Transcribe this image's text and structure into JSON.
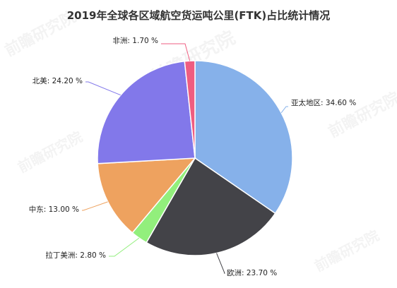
{
  "chart_data": {
    "type": "pie",
    "title": "2019年全球各区域航空货运吨公里(FTK)占比统计情况",
    "unit": "%",
    "slices": [
      {
        "name": "亚太地区",
        "value": 34.6,
        "label": "亚太地区: 34.60 %",
        "color": "#86b1ea"
      },
      {
        "name": "欧洲",
        "value": 23.7,
        "label": "欧洲: 23.70 %",
        "color": "#434348"
      },
      {
        "name": "拉丁美洲",
        "value": 2.8,
        "label": "拉丁美洲: 2.80 %",
        "color": "#92ef7c"
      },
      {
        "name": "中东",
        "value": 13.0,
        "label": "中东: 13.00 %",
        "color": "#eea25f"
      },
      {
        "name": "北美",
        "value": 24.2,
        "label": "北美: 24.20 %",
        "color": "#8278ea"
      },
      {
        "name": "非洲",
        "value": 1.7,
        "label": "非洲: 1.70 %",
        "color": "#ef5d80"
      }
    ]
  },
  "watermark": {
    "brand": "前瞻研究院"
  }
}
